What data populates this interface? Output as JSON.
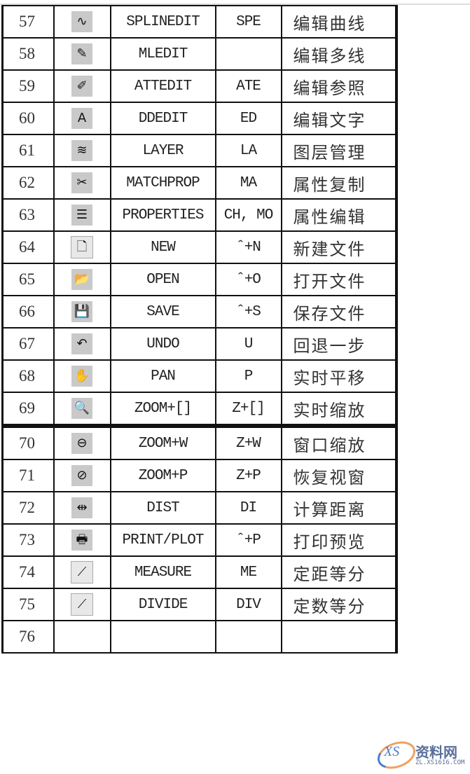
{
  "rows": [
    {
      "no": "57",
      "icon": "spline-edit-icon",
      "glyph": "∿",
      "command": "SPLINEDIT",
      "alias": "SPE",
      "desc": "编辑曲线"
    },
    {
      "no": "58",
      "icon": "multiline-edit-icon",
      "glyph": "✎",
      "command": "MLEDIT",
      "alias": "",
      "desc": "编辑多线"
    },
    {
      "no": "59",
      "icon": "attribute-edit-icon",
      "glyph": "✐",
      "command": "ATTEDIT",
      "alias": "ATE",
      "desc": "编辑参照"
    },
    {
      "no": "60",
      "icon": "text-edit-icon",
      "glyph": "A",
      "command": "DDEDIT",
      "alias": "ED",
      "desc": "编辑文字"
    },
    {
      "no": "61",
      "icon": "layers-icon",
      "glyph": "≋",
      "command": "LAYER",
      "alias": "LA",
      "desc": "图层管理"
    },
    {
      "no": "62",
      "icon": "match-properties-icon",
      "glyph": "✂",
      "command": "MATCHPROP",
      "alias": "MA",
      "desc": "属性复制"
    },
    {
      "no": "63",
      "icon": "properties-icon",
      "glyph": "☰",
      "command": "PROPERTIES",
      "alias": "CH, MO",
      "desc": "属性编辑"
    },
    {
      "no": "64",
      "icon": "new-file-icon",
      "glyph": "🗋",
      "command": "NEW",
      "alias": "ˆ+N",
      "desc": "新建文件"
    },
    {
      "no": "65",
      "icon": "open-folder-icon",
      "glyph": "📂",
      "command": "OPEN",
      "alias": "ˆ+O",
      "desc": "打开文件"
    },
    {
      "no": "66",
      "icon": "save-disk-icon",
      "glyph": "💾",
      "command": "SAVE",
      "alias": "ˆ+S",
      "desc": "保存文件"
    },
    {
      "no": "67",
      "icon": "undo-icon",
      "glyph": "↶",
      "command": "UNDO",
      "alias": "U",
      "desc": "回退一步"
    },
    {
      "no": "68",
      "icon": "pan-hand-icon",
      "glyph": "✋",
      "command": "PAN",
      "alias": "P",
      "desc": "实时平移"
    },
    {
      "no": "69",
      "icon": "zoom-realtime-icon",
      "glyph": "🔍",
      "command": "ZOOM+[]",
      "alias": "Z+[]",
      "desc": "实时缩放"
    },
    {
      "no": "70",
      "icon": "zoom-window-icon",
      "glyph": "⊖",
      "command": "ZOOM+W",
      "alias": "Z+W",
      "desc": "窗口缩放"
    },
    {
      "no": "71",
      "icon": "zoom-previous-icon",
      "glyph": "⊘",
      "command": "ZOOM+P",
      "alias": "Z+P",
      "desc": "恢复视窗"
    },
    {
      "no": "72",
      "icon": "distance-icon",
      "glyph": "⇹",
      "command": "DIST",
      "alias": "DI",
      "desc": "计算距离"
    },
    {
      "no": "73",
      "icon": "printer-icon",
      "glyph": "🖶",
      "command": "PRINT/PLOT",
      "alias": "ˆ+P",
      "desc": "打印预览"
    },
    {
      "no": "74",
      "icon": "measure-icon",
      "glyph": "⟋",
      "command": "MEASURE",
      "alias": "ME",
      "desc": "定距等分"
    },
    {
      "no": "75",
      "icon": "divide-icon",
      "glyph": "⟋",
      "command": "DIVIDE",
      "alias": "DIV",
      "desc": "定数等分"
    },
    {
      "no": "76",
      "icon": "",
      "glyph": "",
      "command": "",
      "alias": "",
      "desc": ""
    }
  ],
  "watermark": {
    "logo": "XS",
    "name": "资料网",
    "url": "ZL.XS1616.COM"
  }
}
